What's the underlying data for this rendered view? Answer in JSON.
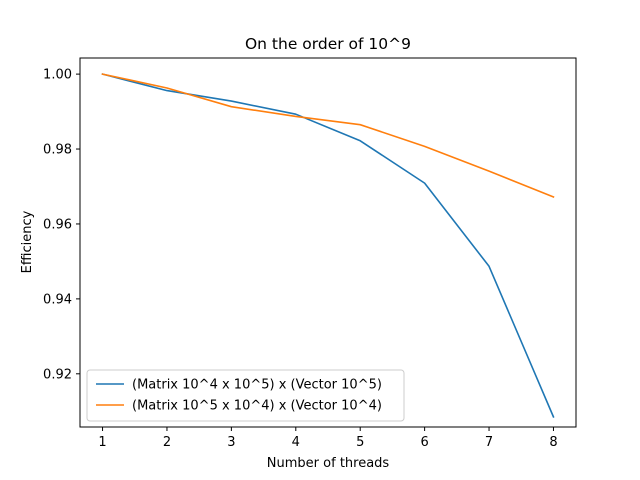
{
  "chart_data": {
    "type": "line",
    "title": "On the order of 10^9",
    "xlabel": "Number of threads",
    "ylabel": "Efficiency",
    "x": [
      1,
      2,
      3,
      4,
      5,
      6,
      7,
      8
    ],
    "xticks": [
      "1",
      "2",
      "3",
      "4",
      "5",
      "6",
      "7",
      "8"
    ],
    "yticks": [
      "0.92",
      "0.94",
      "0.96",
      "0.98",
      "1.00"
    ],
    "xlim": [
      0.65,
      8.35
    ],
    "ylim": [
      0.9058,
      1.0043
    ],
    "grid": false,
    "legend_position": "lower-left",
    "series": [
      {
        "name": "(Matrix 10^4 x 10^5) x (Vector 10^5)",
        "color": "#1f77b4",
        "values": [
          1.0,
          0.9956,
          0.9928,
          0.9893,
          0.9822,
          0.9709,
          0.9487,
          0.9085
        ]
      },
      {
        "name": "(Matrix 10^5 x 10^4) x (Vector 10^4)",
        "color": "#ff7f0e",
        "values": [
          1.0,
          0.9963,
          0.9913,
          0.9887,
          0.9865,
          0.9807,
          0.9741,
          0.9672
        ]
      }
    ]
  }
}
